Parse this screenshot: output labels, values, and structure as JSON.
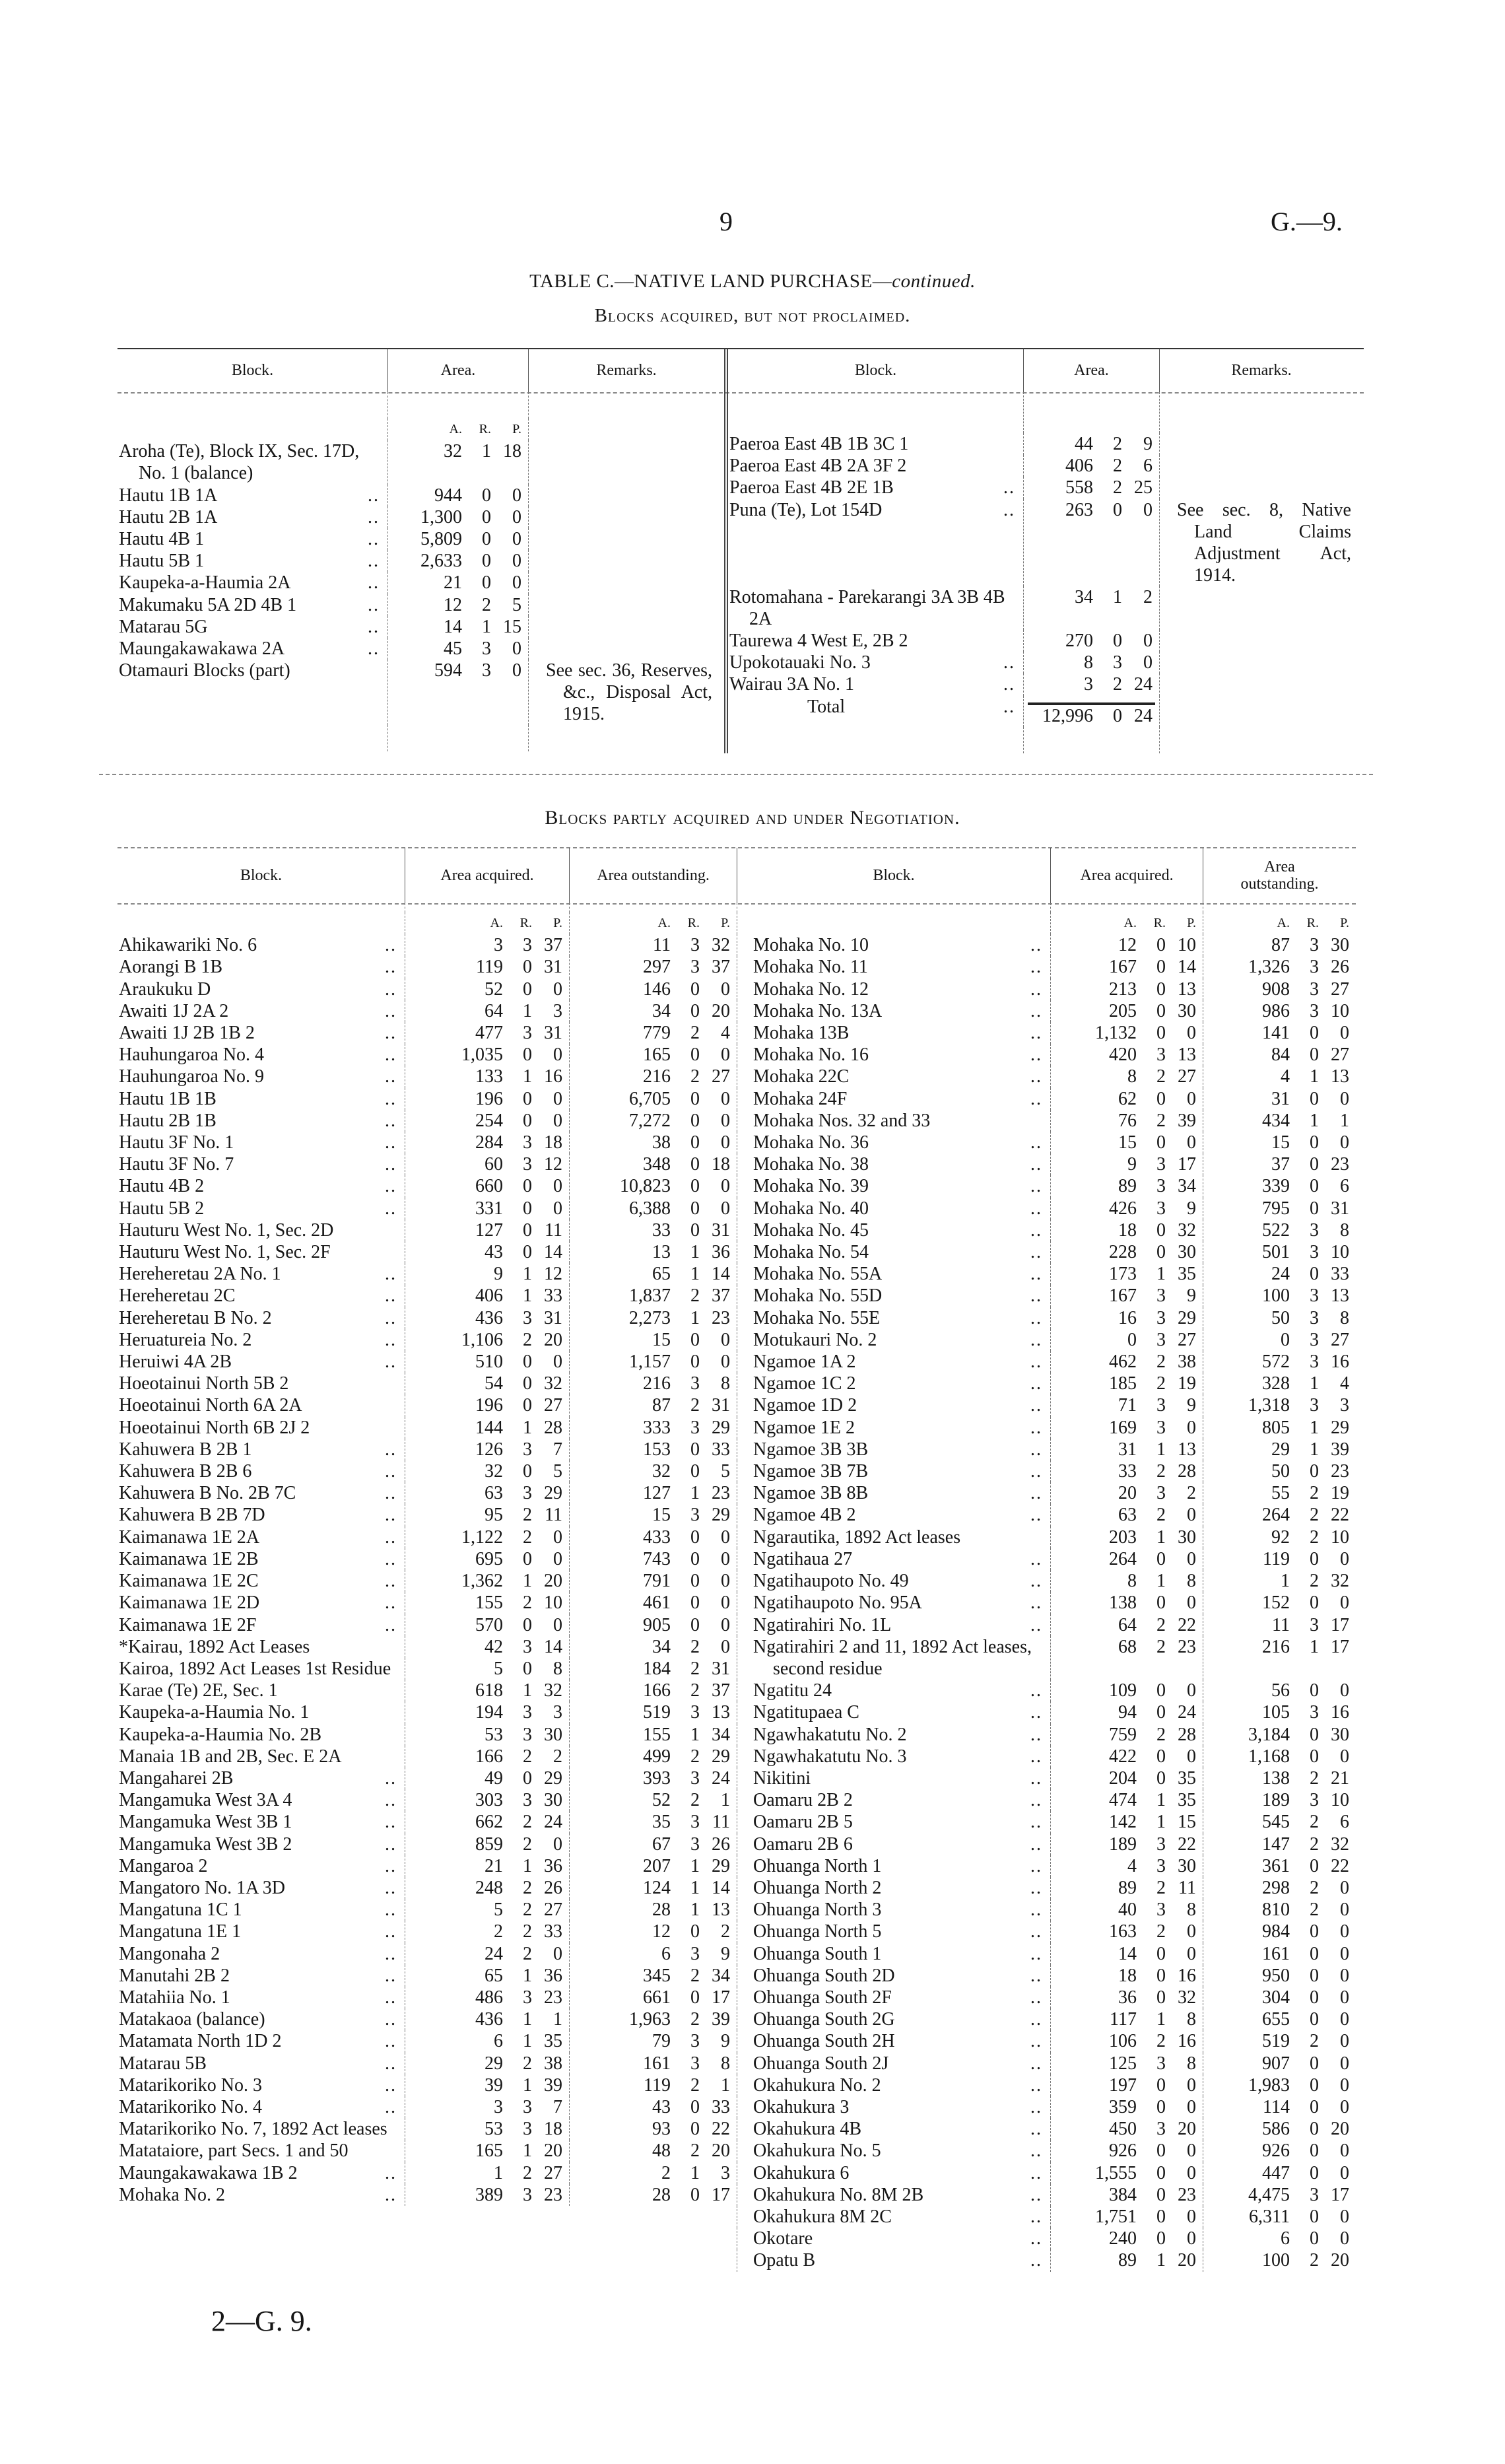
{
  "page_number": "9",
  "doc_ref": "G.—9.",
  "title": "TABLE C.—NATIVE LAND PURCHASE—",
  "title_italic": "continued.",
  "section1": "Blocks acquired, but not proclaimed.",
  "section2": "Blocks partly acquired and under Negotiation.",
  "footer": "2—G. 9.",
  "top_table": {
    "headers": {
      "block": "Block.",
      "area": "Area.",
      "remarks": "Remarks."
    },
    "units": [
      "A.",
      "R.",
      "P."
    ],
    "left_rows": [
      [
        "Aroha (Te), Block IX, Sec. 17D, No. 1 (balance)",
        "32",
        "1",
        "18",
        ""
      ],
      [
        "Hautu 1B 1A",
        "944",
        "0",
        "0",
        ""
      ],
      [
        "Hautu 2B 1A",
        "1,300",
        "0",
        "0",
        ""
      ],
      [
        "Hautu 4B 1",
        "5,809",
        "0",
        "0",
        ""
      ],
      [
        "Hautu 5B 1",
        "2,633",
        "0",
        "0",
        ""
      ],
      [
        "Kaupeka-a-Haumia 2A",
        "21",
        "0",
        "0",
        ""
      ],
      [
        "Makumaku 5A 2D 4B 1",
        "12",
        "2",
        "5",
        ""
      ],
      [
        "Matarau 5G",
        "14",
        "1",
        "15",
        ""
      ],
      [
        "Maungakawakawa 2A",
        "45",
        "3",
        "0",
        ""
      ],
      [
        "Otamauri Blocks (part)",
        "594",
        "3",
        "0",
        "See sec. 36, Reserves, &c., Disposal Act, 1915."
      ]
    ],
    "right_rows": [
      [
        "Paeroa East 4B 1B 3C 1",
        "44",
        "2",
        "9",
        ""
      ],
      [
        "Paeroa East 4B 2A 3F 2",
        "406",
        "2",
        "6",
        ""
      ],
      [
        "Paeroa East 4B 2E 1B",
        "558",
        "2",
        "25",
        ""
      ],
      [
        "Puna (Te), Lot 154D",
        "263",
        "0",
        "0",
        "See sec. 8, Native Land Claims Adjustment Act, 1914."
      ],
      [
        "Rotomahana - Parekarangi 3A 3B 4B 2A",
        "34",
        "1",
        "2",
        ""
      ],
      [
        "Taurewa 4 West E, 2B 2",
        "270",
        "0",
        "0",
        ""
      ],
      [
        "Upokotauaki No. 3",
        "8",
        "3",
        "0",
        ""
      ],
      [
        "Wairau 3A No. 1",
        "3",
        "2",
        "24",
        ""
      ]
    ],
    "total": {
      "label": "Total",
      "a": "12,996",
      "r": "0",
      "p": "24"
    }
  },
  "bottom_table": {
    "headers": {
      "block": "Block.",
      "acquired": "Area acquired.",
      "outstanding": "Area outstanding."
    },
    "units": [
      "A.",
      "R.",
      "P."
    ],
    "left_rows": [
      [
        "Ahikawariki No. 6",
        "3",
        "3",
        "37",
        "11",
        "3",
        "32"
      ],
      [
        "Aorangi B 1B",
        "119",
        "0",
        "31",
        "297",
        "3",
        "37"
      ],
      [
        "Araukuku D",
        "52",
        "0",
        "0",
        "146",
        "0",
        "0"
      ],
      [
        "Awaiti 1J 2A 2",
        "64",
        "1",
        "3",
        "34",
        "0",
        "20"
      ],
      [
        "Awaiti 1J 2B 1B 2",
        "477",
        "3",
        "31",
        "779",
        "2",
        "4"
      ],
      [
        "Hauhungaroa No. 4",
        "1,035",
        "0",
        "0",
        "165",
        "0",
        "0"
      ],
      [
        "Hauhungaroa No. 9",
        "133",
        "1",
        "16",
        "216",
        "2",
        "27"
      ],
      [
        "Hautu 1B 1B",
        "196",
        "0",
        "0",
        "6,705",
        "0",
        "0"
      ],
      [
        "Hautu 2B 1B",
        "254",
        "0",
        "0",
        "7,272",
        "0",
        "0"
      ],
      [
        "Hautu 3F No. 1",
        "284",
        "3",
        "18",
        "38",
        "0",
        "0"
      ],
      [
        "Hautu 3F No. 7",
        "60",
        "3",
        "12",
        "348",
        "0",
        "18"
      ],
      [
        "Hautu 4B 2",
        "660",
        "0",
        "0",
        "10,823",
        "0",
        "0"
      ],
      [
        "Hautu 5B 2",
        "331",
        "0",
        "0",
        "6,388",
        "0",
        "0"
      ],
      [
        "Hauturu West No. 1, Sec. 2D",
        "127",
        "0",
        "11",
        "33",
        "0",
        "31"
      ],
      [
        "Hauturu West No. 1, Sec. 2F",
        "43",
        "0",
        "14",
        "13",
        "1",
        "36"
      ],
      [
        "Hereheretau 2A No. 1",
        "9",
        "1",
        "12",
        "65",
        "1",
        "14"
      ],
      [
        "Hereheretau 2C",
        "406",
        "1",
        "33",
        "1,837",
        "2",
        "37"
      ],
      [
        "Hereheretau B No. 2",
        "436",
        "3",
        "31",
        "2,273",
        "1",
        "23"
      ],
      [
        "Heruatureia No. 2",
        "1,106",
        "2",
        "20",
        "15",
        "0",
        "0"
      ],
      [
        "Heruiwi 4A 2B",
        "510",
        "0",
        "0",
        "1,157",
        "0",
        "0"
      ],
      [
        "Hoeotainui North 5B 2",
        "54",
        "0",
        "32",
        "216",
        "3",
        "8"
      ],
      [
        "Hoeotainui North 6A 2A",
        "196",
        "0",
        "27",
        "87",
        "2",
        "31"
      ],
      [
        "Hoeotainui North 6B 2J 2",
        "144",
        "1",
        "28",
        "333",
        "3",
        "29"
      ],
      [
        "Kahuwera B 2B 1",
        "126",
        "3",
        "7",
        "153",
        "0",
        "33"
      ],
      [
        "Kahuwera B 2B 6",
        "32",
        "0",
        "5",
        "32",
        "0",
        "5"
      ],
      [
        "Kahuwera B No. 2B 7C",
        "63",
        "3",
        "29",
        "127",
        "1",
        "23"
      ],
      [
        "Kahuwera B 2B 7D",
        "95",
        "2",
        "11",
        "15",
        "3",
        "29"
      ],
      [
        "Kaimanawa 1E 2A",
        "1,122",
        "2",
        "0",
        "433",
        "0",
        "0"
      ],
      [
        "Kaimanawa 1E 2B",
        "695",
        "0",
        "0",
        "743",
        "0",
        "0"
      ],
      [
        "Kaimanawa 1E 2C",
        "1,362",
        "1",
        "20",
        "791",
        "0",
        "0"
      ],
      [
        "Kaimanawa 1E 2D",
        "155",
        "2",
        "10",
        "461",
        "0",
        "0"
      ],
      [
        "Kaimanawa 1E 2F",
        "570",
        "0",
        "0",
        "905",
        "0",
        "0"
      ],
      [
        "*Kairau, 1892 Act Leases",
        "42",
        "3",
        "14",
        "34",
        "2",
        "0"
      ],
      [
        "Kairoa, 1892 Act Leases 1st Residue",
        "5",
        "0",
        "8",
        "184",
        "2",
        "31"
      ],
      [
        "Karae (Te) 2E, Sec. 1",
        "618",
        "1",
        "32",
        "166",
        "2",
        "37"
      ],
      [
        "Kaupeka-a-Haumia No. 1",
        "194",
        "3",
        "3",
        "519",
        "3",
        "13"
      ],
      [
        "Kaupeka-a-Haumia No. 2B",
        "53",
        "3",
        "30",
        "155",
        "1",
        "34"
      ],
      [
        "Manaia 1B and 2B, Sec. E 2A",
        "166",
        "2",
        "2",
        "499",
        "2",
        "29"
      ],
      [
        "Mangaharei 2B",
        "49",
        "0",
        "29",
        "393",
        "3",
        "24"
      ],
      [
        "Mangamuka West 3A 4",
        "303",
        "3",
        "30",
        "52",
        "2",
        "1"
      ],
      [
        "Mangamuka West 3B 1",
        "662",
        "2",
        "24",
        "35",
        "3",
        "11"
      ],
      [
        "Mangamuka West 3B 2",
        "859",
        "2",
        "0",
        "67",
        "3",
        "26"
      ],
      [
        "Mangaroa 2",
        "21",
        "1",
        "36",
        "207",
        "1",
        "29"
      ],
      [
        "Mangatoro No. 1A 3D",
        "248",
        "2",
        "26",
        "124",
        "1",
        "14"
      ],
      [
        "Mangatuna 1C 1",
        "5",
        "2",
        "27",
        "28",
        "1",
        "13"
      ],
      [
        "Mangatuna 1E 1",
        "2",
        "2",
        "33",
        "12",
        "0",
        "2"
      ],
      [
        "Mangonaha 2",
        "24",
        "2",
        "0",
        "6",
        "3",
        "9"
      ],
      [
        "Manutahi 2B 2",
        "65",
        "1",
        "36",
        "345",
        "2",
        "34"
      ],
      [
        "Matahiia No. 1",
        "486",
        "3",
        "23",
        "661",
        "0",
        "17"
      ],
      [
        "Matakaoa (balance)",
        "436",
        "1",
        "1",
        "1,963",
        "2",
        "39"
      ],
      [
        "Matamata North 1D 2",
        "6",
        "1",
        "35",
        "79",
        "3",
        "9"
      ],
      [
        "Matarau 5B",
        "29",
        "2",
        "38",
        "161",
        "3",
        "8"
      ],
      [
        "Matarikoriko No. 3",
        "39",
        "1",
        "39",
        "119",
        "2",
        "1"
      ],
      [
        "Matarikoriko No. 4",
        "3",
        "3",
        "7",
        "43",
        "0",
        "33"
      ],
      [
        "Matarikoriko No. 7, 1892 Act leases",
        "53",
        "3",
        "18",
        "93",
        "0",
        "22"
      ],
      [
        "Matataiore, part Secs. 1 and 50",
        "165",
        "1",
        "20",
        "48",
        "2",
        "20"
      ],
      [
        "Maungakawakawa 1B 2",
        "1",
        "2",
        "27",
        "2",
        "1",
        "3"
      ],
      [
        "Mohaka No. 2",
        "389",
        "3",
        "23",
        "28",
        "0",
        "17"
      ]
    ],
    "right_rows": [
      [
        "Mohaka No. 10",
        "12",
        "0",
        "10",
        "87",
        "3",
        "30"
      ],
      [
        "Mohaka No. 11",
        "167",
        "0",
        "14",
        "1,326",
        "3",
        "26"
      ],
      [
        "Mohaka No. 12",
        "213",
        "0",
        "13",
        "908",
        "3",
        "27"
      ],
      [
        "Mohaka No. 13A",
        "205",
        "0",
        "30",
        "986",
        "3",
        "10"
      ],
      [
        "Mohaka 13B",
        "1,132",
        "0",
        "0",
        "141",
        "0",
        "0"
      ],
      [
        "Mohaka No. 16",
        "420",
        "3",
        "13",
        "84",
        "0",
        "27"
      ],
      [
        "Mohaka 22C",
        "8",
        "2",
        "27",
        "4",
        "1",
        "13"
      ],
      [
        "Mohaka 24F",
        "62",
        "0",
        "0",
        "31",
        "0",
        "0"
      ],
      [
        "Mohaka Nos. 32 and 33",
        "76",
        "2",
        "39",
        "434",
        "1",
        "1"
      ],
      [
        "Mohaka No. 36",
        "15",
        "0",
        "0",
        "15",
        "0",
        "0"
      ],
      [
        "Mohaka No. 38",
        "9",
        "3",
        "17",
        "37",
        "0",
        "23"
      ],
      [
        "Mohaka No. 39",
        "89",
        "3",
        "34",
        "339",
        "0",
        "6"
      ],
      [
        "Mohaka No. 40",
        "426",
        "3",
        "9",
        "795",
        "0",
        "31"
      ],
      [
        "Mohaka No. 45",
        "18",
        "0",
        "32",
        "522",
        "3",
        "8"
      ],
      [
        "Mohaka No. 54",
        "228",
        "0",
        "30",
        "501",
        "3",
        "10"
      ],
      [
        "Mohaka No. 55A",
        "173",
        "1",
        "35",
        "24",
        "0",
        "33"
      ],
      [
        "Mohaka No. 55D",
        "167",
        "3",
        "9",
        "100",
        "3",
        "13"
      ],
      [
        "Mohaka No. 55E",
        "16",
        "3",
        "29",
        "50",
        "3",
        "8"
      ],
      [
        "Motukauri No. 2",
        "0",
        "3",
        "27",
        "0",
        "3",
        "27"
      ],
      [
        "Ngamoe 1A 2",
        "462",
        "2",
        "38",
        "572",
        "3",
        "16"
      ],
      [
        "Ngamoe 1C 2",
        "185",
        "2",
        "19",
        "328",
        "1",
        "4"
      ],
      [
        "Ngamoe 1D 2",
        "71",
        "3",
        "9",
        "1,318",
        "3",
        "3"
      ],
      [
        "Ngamoe 1E 2",
        "169",
        "3",
        "0",
        "805",
        "1",
        "29"
      ],
      [
        "Ngamoe 3B 3B",
        "31",
        "1",
        "13",
        "29",
        "1",
        "39"
      ],
      [
        "Ngamoe 3B 7B",
        "33",
        "2",
        "28",
        "50",
        "0",
        "23"
      ],
      [
        "Ngamoe 3B 8B",
        "20",
        "3",
        "2",
        "55",
        "2",
        "19"
      ],
      [
        "Ngamoe 4B 2",
        "63",
        "2",
        "0",
        "264",
        "2",
        "22"
      ],
      [
        "Ngarautika, 1892 Act leases",
        "203",
        "1",
        "30",
        "92",
        "2",
        "10"
      ],
      [
        "Ngatihaua 27",
        "264",
        "0",
        "0",
        "119",
        "0",
        "0"
      ],
      [
        "Ngatihaupoto No. 49",
        "8",
        "1",
        "8",
        "1",
        "2",
        "32"
      ],
      [
        "Ngatihaupoto No. 95A",
        "138",
        "0",
        "0",
        "152",
        "0",
        "0"
      ],
      [
        "Ngatirahiri No. 1L",
        "64",
        "2",
        "22",
        "11",
        "3",
        "17"
      ],
      [
        "Ngatirahiri 2 and 11, 1892 Act leases, second residue",
        "68",
        "2",
        "23",
        "216",
        "1",
        "17"
      ],
      [
        "Ngatitu 24",
        "109",
        "0",
        "0",
        "56",
        "0",
        "0"
      ],
      [
        "Ngatitupaea C",
        "94",
        "0",
        "24",
        "105",
        "3",
        "16"
      ],
      [
        "Ngawhakatutu No. 2",
        "759",
        "2",
        "28",
        "3,184",
        "0",
        "30"
      ],
      [
        "Ngawhakatutu No. 3",
        "422",
        "0",
        "0",
        "1,168",
        "0",
        "0"
      ],
      [
        "Nikitini",
        "204",
        "0",
        "35",
        "138",
        "2",
        "21"
      ],
      [
        "Oamaru 2B 2",
        "474",
        "1",
        "35",
        "189",
        "3",
        "10"
      ],
      [
        "Oamaru 2B 5",
        "142",
        "1",
        "15",
        "545",
        "2",
        "6"
      ],
      [
        "Oamaru 2B 6",
        "189",
        "3",
        "22",
        "147",
        "2",
        "32"
      ],
      [
        "Ohuanga North 1",
        "4",
        "3",
        "30",
        "361",
        "0",
        "22"
      ],
      [
        "Ohuanga North 2",
        "89",
        "2",
        "11",
        "298",
        "2",
        "0"
      ],
      [
        "Ohuanga North 3",
        "40",
        "3",
        "8",
        "810",
        "2",
        "0"
      ],
      [
        "Ohuanga North 5",
        "163",
        "2",
        "0",
        "984",
        "0",
        "0"
      ],
      [
        "Ohuanga South 1",
        "14",
        "0",
        "0",
        "161",
        "0",
        "0"
      ],
      [
        "Ohuanga South 2D",
        "18",
        "0",
        "16",
        "950",
        "0",
        "0"
      ],
      [
        "Ohuanga South 2F",
        "36",
        "0",
        "32",
        "304",
        "0",
        "0"
      ],
      [
        "Ohuanga South 2G",
        "117",
        "1",
        "8",
        "655",
        "0",
        "0"
      ],
      [
        "Ohuanga South 2H",
        "106",
        "2",
        "16",
        "519",
        "2",
        "0"
      ],
      [
        "Ohuanga South 2J",
        "125",
        "3",
        "8",
        "907",
        "0",
        "0"
      ],
      [
        "Okahukura No. 2",
        "197",
        "0",
        "0",
        "1,983",
        "0",
        "0"
      ],
      [
        "Okahukura 3",
        "359",
        "0",
        "0",
        "114",
        "0",
        "0"
      ],
      [
        "Okahukura 4B",
        "450",
        "3",
        "20",
        "586",
        "0",
        "20"
      ],
      [
        "Okahukura No. 5",
        "926",
        "0",
        "0",
        "926",
        "0",
        "0"
      ],
      [
        "Okahukura 6",
        "1,555",
        "0",
        "0",
        "447",
        "0",
        "0"
      ],
      [
        "Okahukura No. 8M 2B",
        "384",
        "0",
        "23",
        "4,475",
        "3",
        "17"
      ],
      [
        "Okahukura 8M 2C",
        "1,751",
        "0",
        "0",
        "6,311",
        "0",
        "0"
      ],
      [
        "Okotare",
        "240",
        "0",
        "0",
        "6",
        "0",
        "0"
      ],
      [
        "Opatu B",
        "89",
        "1",
        "20",
        "100",
        "2",
        "20"
      ]
    ]
  }
}
